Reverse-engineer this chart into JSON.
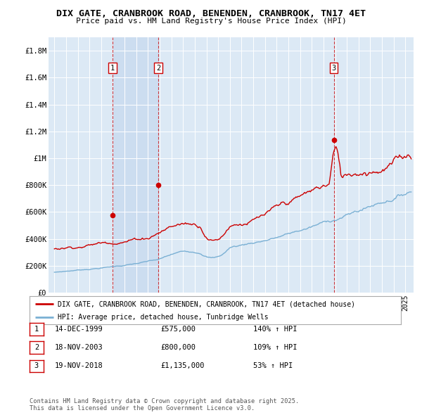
{
  "title": "DIX GATE, CRANBROOK ROAD, BENENDEN, CRANBROOK, TN17 4ET",
  "subtitle": "Price paid vs. HM Land Registry's House Price Index (HPI)",
  "ylim": [
    0,
    1900000
  ],
  "yticks": [
    0,
    200000,
    400000,
    600000,
    800000,
    1000000,
    1200000,
    1400000,
    1600000,
    1800000
  ],
  "ytick_labels": [
    "£0",
    "£200K",
    "£400K",
    "£600K",
    "£800K",
    "£1M",
    "£1.2M",
    "£1.4M",
    "£1.6M",
    "£1.8M"
  ],
  "transactions": [
    {
      "date_num": 1999.96,
      "price": 575000,
      "label": "1"
    },
    {
      "date_num": 2003.88,
      "price": 800000,
      "label": "2"
    },
    {
      "date_num": 2018.88,
      "price": 1135000,
      "label": "3"
    }
  ],
  "sale_color": "#cc0000",
  "hpi_color": "#7ab0d4",
  "bg_color": "#dce9f5",
  "shade_color": "#ccddf0",
  "legend_sale": "DIX GATE, CRANBROOK ROAD, BENENDEN, CRANBROOK, TN17 4ET (detached house)",
  "legend_hpi": "HPI: Average price, detached house, Tunbridge Wells",
  "footer": "Contains HM Land Registry data © Crown copyright and database right 2025.\nThis data is licensed under the Open Government Licence v3.0.",
  "table": [
    {
      "num": "1",
      "date": "14-DEC-1999",
      "price": "£575,000",
      "change": "140% ↑ HPI"
    },
    {
      "num": "2",
      "date": "18-NOV-2003",
      "price": "£800,000",
      "change": "109% ↑ HPI"
    },
    {
      "num": "3",
      "date": "19-NOV-2018",
      "price": "£1,135,000",
      "change": "53% ↑ HPI"
    }
  ],
  "xlim_start": 1994.5,
  "xlim_end": 2025.7
}
